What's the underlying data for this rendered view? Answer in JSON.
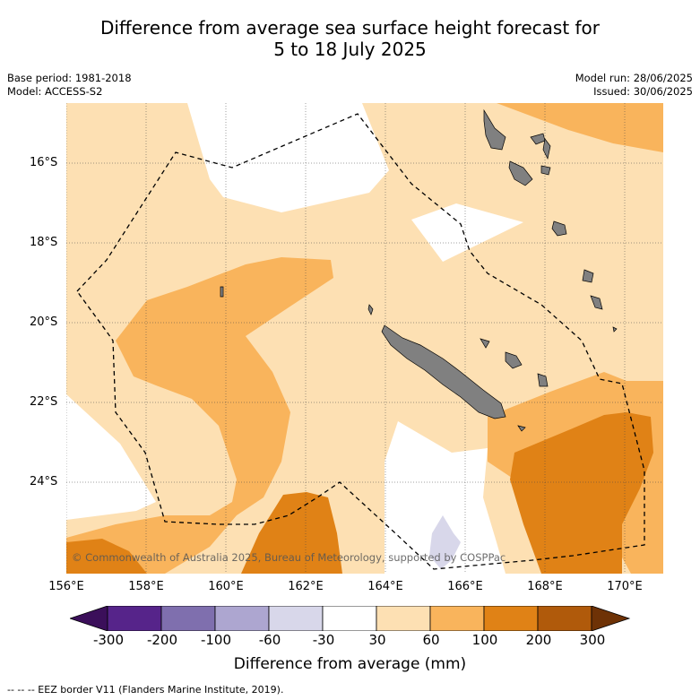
{
  "title": {
    "line1": "Difference from average sea surface height forecast for",
    "line2": "5 to 18 July 2025"
  },
  "meta": {
    "base_period": "Base period: 1981-2018",
    "model": "Model: ACCESS-S2",
    "model_run": "Model run: 28/06/2025",
    "issued": "Issued: 30/06/2025"
  },
  "map": {
    "latitude_labels": [
      "16°S",
      "18°S",
      "20°S",
      "22°S",
      "24°S"
    ],
    "longitude_labels": [
      "156°E",
      "158°E",
      "160°E",
      "162°E",
      "164°E",
      "166°E",
      "168°E",
      "170°E"
    ],
    "copyright": "© Commonwealth of Australia 2025, Bureau of Meteorology, supported by COSPPac",
    "colors": {
      "land": "#808080",
      "eez_border": "#000000"
    }
  },
  "colorbar": {
    "title": "Difference from average (mm)",
    "ticks": [
      "-300",
      "-200",
      "-100",
      "-60",
      "-30",
      "30",
      "60",
      "100",
      "200",
      "300"
    ],
    "colors": [
      "#3b0f5a",
      "#56248a",
      "#7f6fae",
      "#ada6d0",
      "#d8d7ea",
      "#ffffff",
      "#fde0b3",
      "#f9b45c",
      "#e08216",
      "#b05a0b",
      "#6e3206"
    ]
  },
  "footnote": "-- -- -- EEZ border V11 (Flanders Marine Institute, 2019)."
}
